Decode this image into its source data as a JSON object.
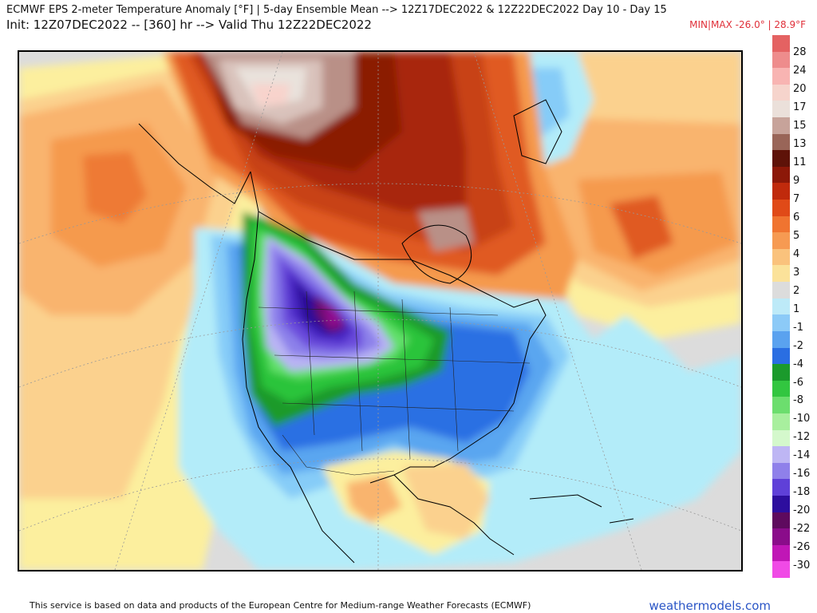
{
  "header": {
    "title": "ECMWF EPS 2-meter Temperature Anomaly [°F] | 5-day Ensemble Mean --> 12Z17DEC2022 & 12Z22DEC2022   Day 10 - Day 15",
    "subtitle": "Init: 12Z07DEC2022 -- [360] hr --> Valid Thu 12Z22DEC2022",
    "minmax": "MIN|MAX -26.0° | 28.9°F"
  },
  "legend": {
    "labels": [
      "28",
      "24",
      "20",
      "17",
      "15",
      "13",
      "11",
      "9",
      "7",
      "6",
      "5",
      "4",
      "3",
      "2",
      "1",
      "-1",
      "-2",
      "-4",
      "-6",
      "-8",
      "-10",
      "-12",
      "-14",
      "-16",
      "-18",
      "-20",
      "-22",
      "-26",
      "-30"
    ],
    "colors": [
      "#e46262",
      "#ec8a8a",
      "#f4b0b0",
      "#f8d3cc",
      "#e9e2dc",
      "#d9c2bb",
      "#b99087",
      "#8f5a50",
      "#6a1408",
      "#8b1a06",
      "#a82808",
      "#c84214",
      "#e05a22",
      "#ee7a36",
      "#f59a4e",
      "#f9b46e",
      "#fbd18e",
      "#fcef9e",
      "#dcdcdc",
      "#b3ecf9",
      "#86ccf8",
      "#5aa6f0",
      "#2a70e3",
      "#1a9a2a",
      "#2cc43a",
      "#62e06a",
      "#9ef09a",
      "#d2fad0",
      "#b9b4f4",
      "#8c80ea",
      "#6a4cdc",
      "#4a26c4",
      "#2a0c98",
      "#6a0a6a",
      "#900a90",
      "#c018b8",
      "#ee52ea"
    ],
    "swatch_colors": [
      "#e46262",
      "#ee8c8c",
      "#f8b4b2",
      "#f6d4cc",
      "#ebe0da",
      "#c7a39a",
      "#996558",
      "#5e1208",
      "#8c1808",
      "#c02a0c",
      "#e04a18",
      "#f07430",
      "#f69a52",
      "#fac27c",
      "#fbe29a",
      "#dcdcdc",
      "#bdeaf8",
      "#8ccaf7",
      "#5aa2ef",
      "#2a6ee2",
      "#1b9a2c",
      "#32c640",
      "#6cde6e",
      "#a8ef9e",
      "#d4f8cc",
      "#beb6f4",
      "#8f80ea",
      "#5f40d8",
      "#2d0e9e",
      "#5e0a5e",
      "#8a0c8a",
      "#c016b6",
      "#f04ae6"
    ],
    "extra_swatches": []
  },
  "footer": {
    "note": "This service is based on data and products of the European Centre for Medium-range Weather Forecasts (ECMWF)",
    "brand": "weathermodels.com"
  },
  "map": {
    "projection": "polar-stereographic",
    "region": "North America",
    "field": "2-meter temperature anomaly",
    "units": "°F"
  }
}
